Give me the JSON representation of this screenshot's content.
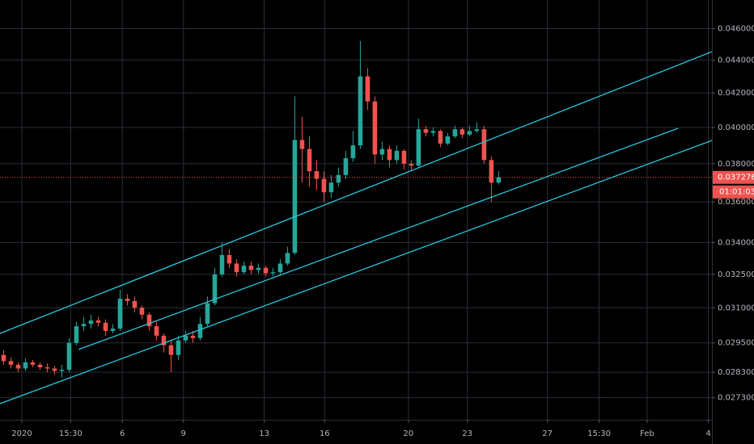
{
  "chart_data": {
    "type": "candlestick",
    "x": [
      0,
      1,
      2,
      3,
      4,
      5,
      6,
      7,
      8,
      9,
      10,
      11,
      12,
      13,
      14,
      15,
      16,
      17,
      18,
      19,
      20,
      21,
      22,
      23,
      24,
      25,
      26,
      27,
      28,
      29,
      30,
      31,
      32,
      33,
      34,
      35,
      36,
      37,
      38,
      39,
      40,
      41,
      42,
      43,
      44,
      45,
      46,
      47,
      48,
      49,
      50,
      51,
      52,
      53,
      54,
      55,
      56,
      57,
      58,
      59,
      60,
      61,
      62,
      63,
      64,
      65,
      66,
      67,
      68
    ],
    "open": [
      0.029,
      0.02875,
      0.0286,
      0.02845,
      0.0287,
      0.0286,
      0.0285,
      0.02845,
      0.02835,
      0.0284,
      0.0295,
      0.0302,
      0.0303,
      0.03045,
      0.03035,
      0.03,
      0.0301,
      0.0314,
      0.0313,
      0.031,
      0.0307,
      0.0302,
      0.0298,
      0.0294,
      0.029,
      0.0296,
      0.0298,
      0.0297,
      0.0303,
      0.0312,
      0.0325,
      0.0334,
      0.033,
      0.0326,
      0.0329,
      0.0327,
      0.0328,
      0.03255,
      0.0326,
      0.033,
      0.0335,
      0.0393,
      0.0388,
      0.0376,
      0.0372,
      0.0365,
      0.037,
      0.0374,
      0.0383,
      0.039,
      0.043,
      0.0415,
      0.0385,
      0.0388,
      0.0382,
      0.0387,
      0.038,
      0.0379,
      0.0399,
      0.0397,
      0.0398,
      0.0391,
      0.0395,
      0.0399,
      0.0396,
      0.0398,
      0.0399,
      0.0382,
      0.037
    ],
    "high": [
      0.0292,
      0.0289,
      0.0287,
      0.02885,
      0.0288,
      0.0287,
      0.02865,
      0.02855,
      0.0286,
      0.0297,
      0.0304,
      0.0306,
      0.0307,
      0.0306,
      0.0305,
      0.0303,
      0.0318,
      0.0316,
      0.0315,
      0.0311,
      0.0308,
      0.0304,
      0.0299,
      0.0296,
      0.0298,
      0.03,
      0.03,
      0.0306,
      0.0315,
      0.0328,
      0.034,
      0.0337,
      0.0332,
      0.0331,
      0.0331,
      0.033,
      0.0329,
      0.0328,
      0.0332,
      0.0338,
      0.0418,
      0.0406,
      0.0395,
      0.0382,
      0.0376,
      0.0374,
      0.0378,
      0.0387,
      0.0398,
      0.0452,
      0.0435,
      0.0418,
      0.0392,
      0.039,
      0.039,
      0.0388,
      0.0382,
      0.0405,
      0.0401,
      0.04,
      0.0399,
      0.0397,
      0.0401,
      0.04,
      0.0401,
      0.0403,
      0.0401,
      0.0384,
      0.0376
    ],
    "low": [
      0.0286,
      0.02845,
      0.0283,
      0.02835,
      0.0285,
      0.0284,
      0.0283,
      0.0282,
      0.0281,
      0.0283,
      0.0294,
      0.03,
      0.0301,
      0.0302,
      0.0298,
      0.0299,
      0.03,
      0.0311,
      0.0308,
      0.0305,
      0.03,
      0.0296,
      0.0291,
      0.0283,
      0.0288,
      0.0295,
      0.0295,
      0.0296,
      0.0302,
      0.0311,
      0.0324,
      0.0328,
      0.0324,
      0.0325,
      0.0325,
      0.0325,
      0.0324,
      0.0324,
      0.0325,
      0.0329,
      0.0334,
      0.037,
      0.0368,
      0.0366,
      0.036,
      0.0362,
      0.0368,
      0.0372,
      0.0381,
      0.0388,
      0.041,
      0.038,
      0.0382,
      0.0378,
      0.038,
      0.0377,
      0.0376,
      0.0378,
      0.0395,
      0.0395,
      0.0389,
      0.039,
      0.0394,
      0.0394,
      0.0395,
      0.0397,
      0.038,
      0.036,
      0.0369
    ],
    "close": [
      0.02875,
      0.0286,
      0.02845,
      0.0287,
      0.0286,
      0.0285,
      0.02845,
      0.02835,
      0.0284,
      0.0295,
      0.0302,
      0.0303,
      0.03045,
      0.03035,
      0.03,
      0.0301,
      0.0314,
      0.0313,
      0.031,
      0.0307,
      0.0302,
      0.0298,
      0.0294,
      0.029,
      0.0296,
      0.0298,
      0.0297,
      0.0303,
      0.0312,
      0.0325,
      0.0334,
      0.033,
      0.0326,
      0.0329,
      0.0327,
      0.0328,
      0.03255,
      0.0326,
      0.033,
      0.0335,
      0.0393,
      0.0388,
      0.0376,
      0.0372,
      0.0365,
      0.037,
      0.0374,
      0.0383,
      0.039,
      0.043,
      0.0415,
      0.0385,
      0.0388,
      0.0382,
      0.0387,
      0.038,
      0.0379,
      0.0399,
      0.0397,
      0.0398,
      0.0391,
      0.0395,
      0.0399,
      0.0396,
      0.0398,
      0.0399,
      0.0382,
      0.037,
      0.03728
    ],
    "up_color": "#26a69a",
    "down_color": "#ef5350",
    "log_scale": true,
    "grid": true,
    "ylim": [
      0.02646,
      0.0479
    ],
    "yticks": [
      {
        "value": 0.046,
        "label": "0.046000"
      },
      {
        "value": 0.044,
        "label": "0.044000"
      },
      {
        "value": 0.042,
        "label": "0.042000"
      },
      {
        "value": 0.04,
        "label": "0.040000"
      },
      {
        "value": 0.038,
        "label": "0.038000"
      },
      {
        "value": 0.036,
        "label": "0.036000"
      },
      {
        "value": 0.034,
        "label": "0.034000"
      },
      {
        "value": 0.0325,
        "label": "0.032500"
      },
      {
        "value": 0.031,
        "label": "0.031000"
      },
      {
        "value": 0.0295,
        "label": "0.029500"
      },
      {
        "value": 0.0283,
        "label": "0.028300"
      },
      {
        "value": 0.0273,
        "label": "0.027300"
      }
    ],
    "xlim": [
      -0.5,
      97.3
    ],
    "xticks": [
      {
        "value": 2.5,
        "label": "2020"
      },
      {
        "value": 9.2,
        "label": "15:30"
      },
      {
        "value": 16.3,
        "label": "6"
      },
      {
        "value": 24.7,
        "label": "9"
      },
      {
        "value": 35.8,
        "label": "13"
      },
      {
        "value": 44.1,
        "label": "16"
      },
      {
        "value": 55.6,
        "label": "20"
      },
      {
        "value": 63.7,
        "label": "23"
      },
      {
        "value": 74.7,
        "label": "27"
      },
      {
        "value": 81.8,
        "label": "15:30"
      },
      {
        "value": 88.4,
        "label": "Feb"
      },
      {
        "value": 96.8,
        "label": "4"
      }
    ],
    "last_price": {
      "value": 0.037276,
      "label": "0.037276"
    },
    "countdown": "01:01:03"
  }
}
